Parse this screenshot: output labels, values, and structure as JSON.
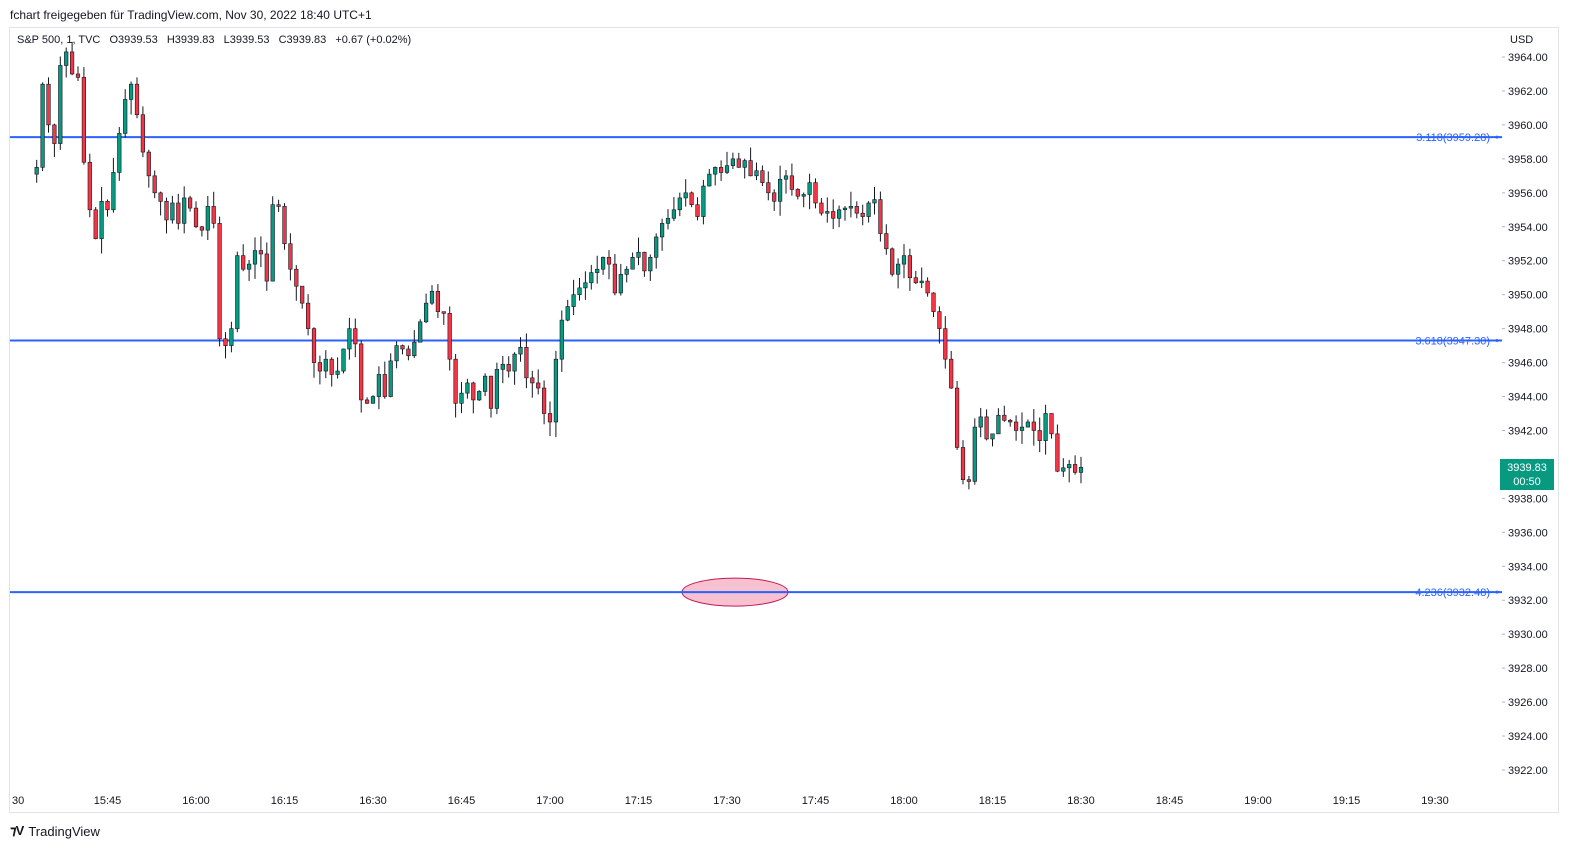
{
  "header": {
    "publish_text": "fchart freigegeben für TradingView.com, Nov 30, 2022 18:40 UTC+1"
  },
  "legend": {
    "symbol": "S&P 500, 1, TVC",
    "open": "O3939.53",
    "high": "H3939.83",
    "low": "L3939.53",
    "close": "C3939.83",
    "change": "+0.67 (+0.02%)"
  },
  "price_axis": {
    "currency": "USD"
  },
  "last_price": {
    "value": "3939.83",
    "countdown": "00:50"
  },
  "footer": {
    "brand": "TradingView",
    "logo_icon": "tradingview-logo-icon"
  },
  "colors": {
    "up": "#089981",
    "down": "#f23645",
    "level": "#2962ff",
    "ellipse": "#f7b6c8",
    "ellipse_stroke": "#c2185b",
    "grid": "#f0f3fa",
    "axis_text": "#131722"
  },
  "chart_data": {
    "type": "candlestick",
    "title": "",
    "ylim": [
      3920.6,
      3965.0
    ],
    "y_ticks": [
      3964,
      3962,
      3960,
      3958,
      3956,
      3954,
      3952,
      3950,
      3948,
      3946,
      3944,
      3942,
      3940,
      3938,
      3936,
      3934,
      3932,
      3930,
      3928,
      3926,
      3924,
      3922
    ],
    "x_ticks": [
      "30",
      "15:45",
      "16:00",
      "16:15",
      "16:30",
      "16:45",
      "17:00",
      "17:15",
      "17:30",
      "17:45",
      "18:00",
      "18:15",
      "18:30",
      "18:45",
      "19:00",
      "19:15",
      "19:30"
    ],
    "x_tick_minutes": [
      -30,
      -15,
      0,
      15,
      30,
      45,
      60,
      75,
      90,
      105,
      120,
      135,
      150,
      165,
      180,
      195,
      210
    ],
    "fib_levels": [
      {
        "label": "3.118(3959.28)",
        "price": 3959.28
      },
      {
        "label": "3.618(3947.30)",
        "price": 3947.3
      },
      {
        "label": "4.236(3932.48)",
        "price": 3932.48
      }
    ],
    "annotation": {
      "type": "ellipse",
      "center_time": "17:30",
      "price": 3932.48
    },
    "close_path_note": "Approximate 1-minute closes from ~15:30 to 18:40, read from candle bodies",
    "closes": [
      3957.5,
      3962.4,
      3960.0,
      3958.9,
      3963.5,
      3964.3,
      3963.0,
      3962.8,
      3957.8,
      3955.0,
      3953.3,
      3955.5,
      3955.0,
      3957.2,
      3959.5,
      3961.5,
      3962.4,
      3960.6,
      3958.4,
      3957.0,
      3956.0,
      3955.5,
      3954.4,
      3955.4,
      3954.2,
      3955.7,
      3955.1,
      3954.0,
      3953.8,
      3955.2,
      3954.2,
      3947.4,
      3947.0,
      3948.0,
      3952.3,
      3951.5,
      3951.8,
      3952.6,
      3952.4,
      3950.8,
      3955.3,
      3955.2,
      3953.0,
      3951.5,
      3950.5,
      3949.5,
      3948.0,
      3946.0,
      3945.5,
      3946.2,
      3945.3,
      3945.5,
      3946.8,
      3948.0,
      3947.1,
      3943.8,
      3943.6,
      3944.0,
      3945.3,
      3944.0,
      3946.1,
      3947.0,
      3946.8,
      3946.4,
      3947.2,
      3948.4,
      3949.5,
      3950.2,
      3949.0,
      3948.9,
      3946.2,
      3943.6,
      3944.2,
      3944.8,
      3943.8,
      3944.3,
      3945.2,
      3943.3,
      3945.6,
      3945.9,
      3945.5,
      3946.5,
      3946.9,
      3945.1,
      3944.8,
      3944.5,
      3943.0,
      3942.5,
      3946.2,
      3948.5,
      3949.3,
      3950.0,
      3950.4,
      3950.7,
      3951.3,
      3951.5,
      3952.2,
      3951.8,
      3950.1,
      3951.2,
      3951.5,
      3952.2,
      3952.5,
      3951.4,
      3952.2,
      3953.4,
      3954.2,
      3954.5,
      3955.0,
      3955.7,
      3956.0,
      3955.3,
      3954.6,
      3956.4,
      3957.1,
      3957.5,
      3957.2,
      3957.6,
      3958.0,
      3957.5,
      3957.9,
      3957.0,
      3957.3,
      3956.6,
      3956.0,
      3955.5,
      3956.8,
      3957.0,
      3956.2,
      3955.8,
      3955.9,
      3956.6,
      3955.4,
      3954.8,
      3954.9,
      3954.5,
      3955.0,
      3955.1,
      3955.2,
      3954.8,
      3954.6,
      3955.4,
      3955.6,
      3953.6,
      3952.7,
      3951.2,
      3951.8,
      3952.3,
      3951.0,
      3950.7,
      3950.8,
      3950.1,
      3949.0,
      3948.0,
      3946.2,
      3944.5,
      3941.0,
      3939.1,
      3939.0,
      3942.2,
      3942.8,
      3941.5,
      3941.8,
      3942.9,
      3942.6,
      3942.5,
      3942.0,
      3942.2,
      3942.5,
      3942.0,
      3941.4,
      3943.0,
      3941.8,
      3939.6,
      3939.8,
      3940.0,
      3939.53,
      3939.83
    ]
  }
}
